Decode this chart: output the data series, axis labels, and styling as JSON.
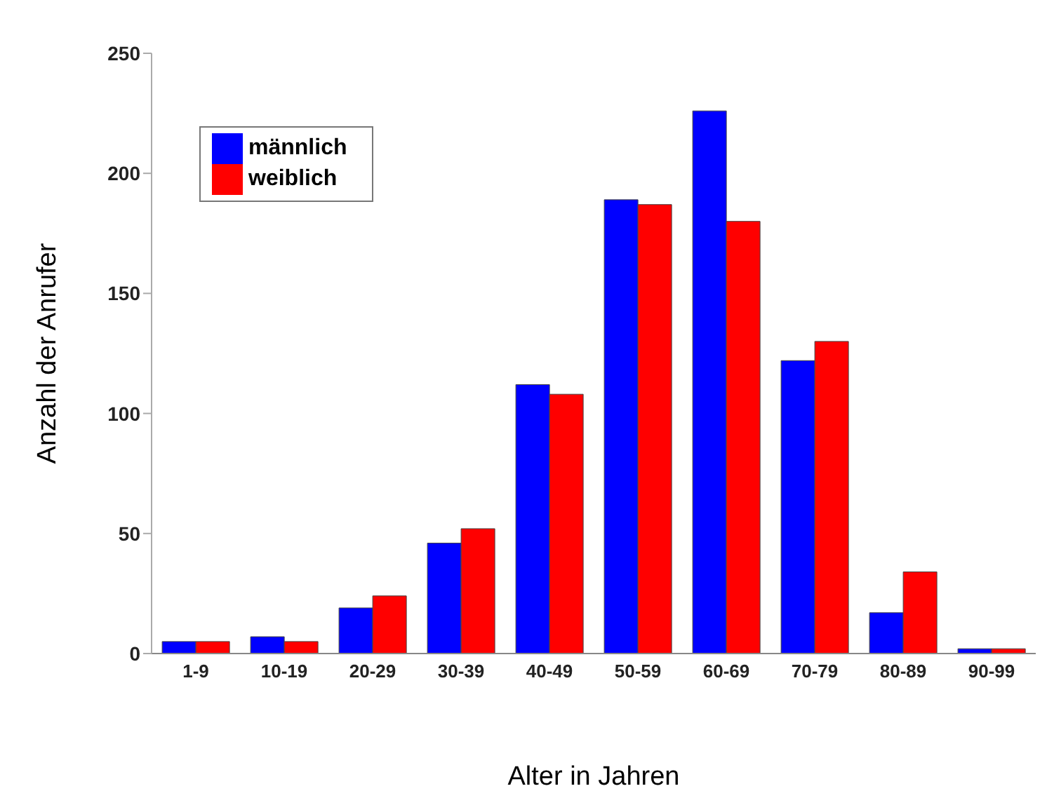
{
  "chart_data": {
    "type": "bar",
    "xlabel": "Alter in Jahren",
    "ylabel": "Anzahl der Anrufer",
    "categories": [
      "1-9",
      "10-19",
      "20-29",
      "30-39",
      "40-49",
      "50-59",
      "60-69",
      "70-79",
      "80-89",
      "90-99"
    ],
    "series": [
      {
        "name": "männlich",
        "color": "#0000ff",
        "values": [
          5,
          7,
          19,
          46,
          112,
          189,
          226,
          122,
          17,
          2
        ]
      },
      {
        "name": "weiblich",
        "color": "#ff0000",
        "values": [
          5,
          5,
          24,
          52,
          108,
          187,
          180,
          130,
          34,
          2
        ]
      }
    ],
    "ylim": [
      0,
      250
    ],
    "yticks": [
      0,
      50,
      100,
      150,
      200,
      250
    ],
    "grid": false,
    "legend": "top left"
  }
}
